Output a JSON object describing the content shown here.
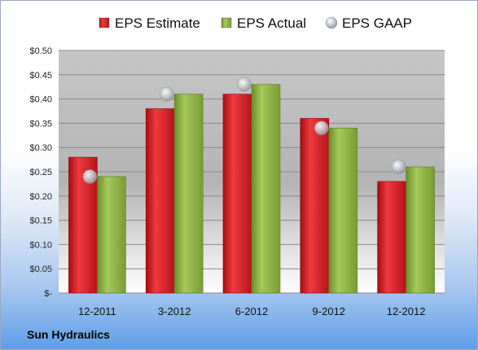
{
  "chart_data": {
    "type": "bar",
    "categories": [
      "12-2011",
      "3-2012",
      "6-2012",
      "9-2012",
      "12-2012"
    ],
    "series": [
      {
        "name": "EPS Estimate",
        "type": "bar",
        "color": "#d0181c",
        "values": [
          0.28,
          0.38,
          0.41,
          0.36,
          0.23
        ]
      },
      {
        "name": "EPS Actual",
        "type": "bar",
        "color": "#8db03c",
        "values": [
          0.24,
          0.41,
          0.43,
          0.34,
          0.26
        ]
      },
      {
        "name": "EPS GAAP",
        "type": "scatter",
        "color": "#b8bcc4",
        "values": [
          0.24,
          0.41,
          0.43,
          0.34,
          0.26
        ]
      }
    ],
    "y_ticks": [
      {
        "value": 0.0,
        "label": "$-"
      },
      {
        "value": 0.05,
        "label": "$0.05"
      },
      {
        "value": 0.1,
        "label": "$0.10"
      },
      {
        "value": 0.15,
        "label": "$0.15"
      },
      {
        "value": 0.2,
        "label": "$0.20"
      },
      {
        "value": 0.25,
        "label": "$0.25"
      },
      {
        "value": 0.3,
        "label": "$0.30"
      },
      {
        "value": 0.35,
        "label": "$0.35"
      },
      {
        "value": 0.4,
        "label": "$0.40"
      },
      {
        "value": 0.45,
        "label": "$0.45"
      },
      {
        "value": 0.5,
        "label": "$0.50"
      }
    ],
    "ylim": [
      0,
      0.5
    ],
    "grid": true,
    "legend": "top",
    "xlabel": "",
    "ylabel": "",
    "title": ""
  },
  "company": "Sun Hydraulics"
}
